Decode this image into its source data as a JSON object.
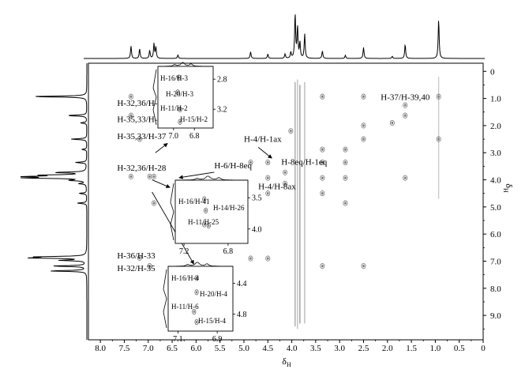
{
  "chart_data": {
    "type": "scatter",
    "kind": "2D NMR contour spectrum (NOESY-type, H vs H)",
    "title": "",
    "xlabel": {
      "main": "δ",
      "sub": "H"
    },
    "ylabel": {
      "main": "δ",
      "sub": "H"
    },
    "xlim": [
      8.25,
      0
    ],
    "ylim": [
      -0.3,
      9.9
    ],
    "x_ticks": [
      "8.0",
      "7.5",
      "7.0",
      "6.5",
      "6.0",
      "5.5",
      "5.0",
      "4.5",
      "4.0",
      "3.5",
      "3.0",
      "2.5",
      "2.0",
      "1.5",
      "1.0",
      "0.5",
      "0"
    ],
    "y_ticks": [
      "0",
      "1.0",
      "2.0",
      "3.0",
      "4.0",
      "5.0",
      "6.0",
      "7.0",
      "8.0",
      "9.0"
    ],
    "top_projection_peaks": [
      {
        "x": 7.36,
        "h": 0.28
      },
      {
        "x": 7.18,
        "h": 0.22
      },
      {
        "x": 6.97,
        "h": 0.18
      },
      {
        "x": 6.88,
        "h": 0.33
      },
      {
        "x": 6.84,
        "h": 0.25
      },
      {
        "x": 6.38,
        "h": 0.08
      },
      {
        "x": 4.86,
        "h": 0.15
      },
      {
        "x": 4.5,
        "h": 0.1
      },
      {
        "x": 4.14,
        "h": 0.1
      },
      {
        "x": 4.02,
        "h": 0.14
      },
      {
        "x": 3.93,
        "h": 1.0
      },
      {
        "x": 3.88,
        "h": 0.7
      },
      {
        "x": 3.83,
        "h": 0.35
      },
      {
        "x": 3.73,
        "h": 0.55
      },
      {
        "x": 3.36,
        "h": 0.17
      },
      {
        "x": 2.88,
        "h": 0.07
      },
      {
        "x": 2.5,
        "h": 0.25
      },
      {
        "x": 1.9,
        "h": 0.05
      },
      {
        "x": 1.63,
        "h": 0.32
      },
      {
        "x": 0.93,
        "h": 0.88
      }
    ],
    "left_projection_peaks": [
      {
        "y": 0.93,
        "h": 0.9
      },
      {
        "y": 1.63,
        "h": 0.32
      },
      {
        "y": 1.9,
        "h": 0.1
      },
      {
        "y": 2.5,
        "h": 0.25
      },
      {
        "y": 2.88,
        "h": 0.08
      },
      {
        "y": 3.36,
        "h": 0.18
      },
      {
        "y": 3.73,
        "h": 0.5
      },
      {
        "y": 3.83,
        "h": 0.7
      },
      {
        "y": 3.88,
        "h": 0.95
      },
      {
        "y": 3.93,
        "h": 1.0
      },
      {
        "y": 4.02,
        "h": 0.25
      },
      {
        "y": 4.14,
        "h": 0.12
      },
      {
        "y": 4.5,
        "h": 0.12
      },
      {
        "y": 4.86,
        "h": 0.15
      },
      {
        "y": 6.84,
        "h": 0.7
      },
      {
        "y": 6.88,
        "h": 0.85
      },
      {
        "y": 6.97,
        "h": 0.4
      },
      {
        "y": 7.18,
        "h": 0.55
      },
      {
        "y": 7.36,
        "h": 0.6
      }
    ],
    "cross_peaks": [
      {
        "x": 7.36,
        "y": 0.93
      },
      {
        "x": 7.36,
        "y": 1.63
      },
      {
        "x": 7.18,
        "y": 2.5
      },
      {
        "x": 7.36,
        "y": 3.88
      },
      {
        "x": 6.88,
        "y": 3.88
      },
      {
        "x": 6.97,
        "y": 3.88
      },
      {
        "x": 6.88,
        "y": 4.86
      },
      {
        "x": 6.97,
        "y": 7.18
      },
      {
        "x": 7.18,
        "y": 6.88
      },
      {
        "x": 4.86,
        "y": 3.36
      },
      {
        "x": 4.5,
        "y": 3.36
      },
      {
        "x": 4.5,
        "y": 3.93
      },
      {
        "x": 4.5,
        "y": 4.5
      },
      {
        "x": 4.14,
        "y": 4.14
      },
      {
        "x": 4.14,
        "y": 3.73
      },
      {
        "x": 3.36,
        "y": 2.88
      },
      {
        "x": 3.36,
        "y": 3.36
      },
      {
        "x": 3.36,
        "y": 3.93
      },
      {
        "x": 3.36,
        "y": 4.5
      },
      {
        "x": 2.88,
        "y": 2.88
      },
      {
        "x": 2.88,
        "y": 3.36
      },
      {
        "x": 2.88,
        "y": 3.93
      },
      {
        "x": 2.88,
        "y": 4.86
      },
      {
        "x": 2.5,
        "y": 0.93
      },
      {
        "x": 2.5,
        "y": 2.0
      },
      {
        "x": 2.5,
        "y": 2.5
      },
      {
        "x": 2.5,
        "y": 7.18
      },
      {
        "x": 1.9,
        "y": 1.9
      },
      {
        "x": 1.63,
        "y": 1.25
      },
      {
        "x": 1.63,
        "y": 1.63
      },
      {
        "x": 1.63,
        "y": 3.93
      },
      {
        "x": 0.93,
        "y": 0.93
      },
      {
        "x": 0.93,
        "y": 2.5
      },
      {
        "x": 4.86,
        "y": 6.9
      },
      {
        "x": 4.5,
        "y": 6.9
      },
      {
        "x": 3.36,
        "y": 0.93
      },
      {
        "x": 4.02,
        "y": 2.2
      },
      {
        "x": 3.36,
        "y": 7.18
      }
    ],
    "streaks": [
      {
        "x": 3.93,
        "y1": 0.4,
        "y2": 9.4
      },
      {
        "x": 3.88,
        "y1": 0.3,
        "y2": 9.5
      },
      {
        "x": 3.83,
        "y1": 0.5,
        "y2": 9.3
      },
      {
        "x": 3.73,
        "y1": 0.4,
        "y2": 9.3
      },
      {
        "x": 0.93,
        "y1": 0.2,
        "y2": 4.7
      }
    ],
    "annotations": [
      {
        "text": "H-32,36/H-30",
        "x": 7.65,
        "y": 1.28
      },
      {
        "text": "H-35,33/H-38",
        "x": 7.65,
        "y": 1.87
      },
      {
        "text": "H-35,33/H-37",
        "x": 7.65,
        "y": 2.5
      },
      {
        "text": "H-32,36/H-28",
        "x": 7.65,
        "y": 3.67
      },
      {
        "text": "H-36/H-33",
        "x": 7.65,
        "y": 6.9
      },
      {
        "text": "H-32/H-35",
        "x": 7.65,
        "y": 7.37
      },
      {
        "text": "H-37/H-39,40",
        "x": 2.14,
        "y": 1.05
      },
      {
        "text": "H-4/H-1ax",
        "x": 5.0,
        "y": 2.6
      },
      {
        "text": "H-6/H-8eq",
        "x": 5.62,
        "y": 3.58
      },
      {
        "text": "H-8eq/H-1eq",
        "x": 4.22,
        "y": 3.45
      },
      {
        "text": "H-4/H-8ax",
        "x": 4.7,
        "y": 4.35
      }
    ],
    "insets": [
      {
        "xlim": [
          7.15,
          6.62
        ],
        "ylim": [
          2.63,
          3.45
        ],
        "x_ticks": [
          "7.0",
          "6.8"
        ],
        "y_ticks": [
          "2.8",
          "3.2"
        ],
        "labels": [
          "H-16/H-3",
          "H-20/H-3",
          "H-11/H-2",
          "H-15/H-2"
        ]
      },
      {
        "xlim": [
          7.28,
          6.62
        ],
        "ylim": [
          3.22,
          4.23
        ],
        "x_ticks": [
          "7.2",
          "6.8"
        ],
        "y_ticks": [
          "3.5",
          "4.0"
        ],
        "labels": [
          "H-16/H-41",
          "H-14/H-26",
          "H-11/H-25"
        ]
      },
      {
        "xlim": [
          7.15,
          6.82
        ],
        "ylim": [
          4.18,
          5.02
        ],
        "x_ticks": [
          "7.1",
          "6.9"
        ],
        "y_ticks": [
          "4.4",
          "4.8"
        ],
        "labels": [
          "H-16/H-4",
          "H-20/H-4",
          "H-11/H-6",
          "H-15/H-4"
        ]
      }
    ]
  }
}
